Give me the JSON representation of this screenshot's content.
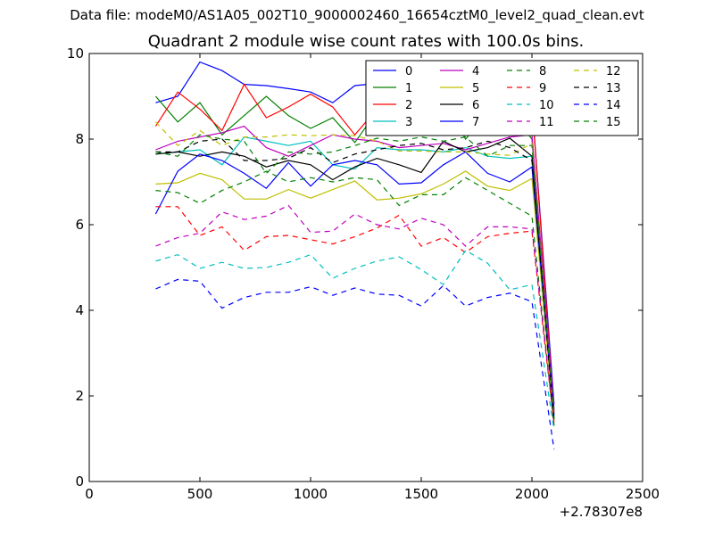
{
  "figure": {
    "suptitle": "Data file: modeM0/AS1A05_002T10_9000002460_16654cztM0_level2_quad_clean.evt"
  },
  "chart_data": {
    "type": "line",
    "title": "Quadrant 2 module wise count rates with 100.0s bins.",
    "xlabel": "",
    "ylabel": "",
    "x_offset_label": "+2.78307e8",
    "xlim": [
      0,
      2500
    ],
    "ylim": [
      0,
      10
    ],
    "xticks": [
      0,
      500,
      1000,
      1500,
      2000,
      2500
    ],
    "yticks": [
      0,
      2,
      4,
      6,
      8,
      10
    ],
    "grid": false,
    "legend_position": "upper-right",
    "x": [
      300,
      400,
      500,
      600,
      700,
      800,
      900,
      1000,
      1100,
      1200,
      1300,
      1400,
      1500,
      1600,
      1700,
      1800,
      1900,
      2000,
      2100
    ],
    "series": [
      {
        "name": "0",
        "color": "#0000ff",
        "dash": "solid",
        "values": [
          8.85,
          9.0,
          9.8,
          9.6,
          9.28,
          9.25,
          9.18,
          9.1,
          8.85,
          9.25,
          9.3,
          8.72,
          9.0,
          9.45,
          9.3,
          8.8,
          9.05,
          8.85,
          1.8
        ]
      },
      {
        "name": "1",
        "color": "#008000",
        "dash": "solid",
        "values": [
          9.0,
          8.4,
          8.85,
          8.1,
          8.55,
          9.0,
          8.55,
          8.25,
          8.5,
          7.92,
          8.65,
          8.7,
          8.75,
          9.0,
          8.0,
          8.6,
          8.65,
          8.0,
          1.7
        ]
      },
      {
        "name": "2",
        "color": "#ff0000",
        "dash": "solid",
        "values": [
          8.3,
          9.1,
          8.7,
          8.2,
          9.28,
          8.5,
          8.75,
          9.05,
          8.75,
          8.1,
          8.7,
          8.72,
          8.72,
          8.1,
          8.9,
          8.8,
          8.72,
          8.85,
          1.6
        ]
      },
      {
        "name": "3",
        "color": "#00bfbf",
        "dash": "solid",
        "values": [
          7.65,
          7.7,
          7.75,
          7.4,
          8.05,
          7.95,
          7.85,
          7.95,
          7.4,
          7.3,
          7.8,
          7.75,
          7.75,
          7.7,
          7.8,
          7.6,
          7.55,
          7.6,
          1.5
        ]
      },
      {
        "name": "4",
        "color": "#bf00bf",
        "dash": "solid",
        "values": [
          7.75,
          7.95,
          8.05,
          8.15,
          8.3,
          7.8,
          7.6,
          7.85,
          8.1,
          8.0,
          7.95,
          7.8,
          7.85,
          7.9,
          7.75,
          7.9,
          8.05,
          8.1,
          1.65
        ]
      },
      {
        "name": "5",
        "color": "#bfbf00",
        "dash": "solid",
        "values": [
          6.95,
          6.98,
          7.2,
          7.05,
          6.6,
          6.6,
          6.82,
          6.62,
          6.82,
          7.02,
          6.58,
          6.62,
          6.72,
          6.95,
          7.25,
          6.9,
          6.8,
          7.08,
          1.4
        ]
      },
      {
        "name": "6",
        "color": "#000000",
        "dash": "solid",
        "values": [
          7.65,
          7.7,
          7.6,
          7.7,
          7.6,
          7.35,
          7.5,
          7.4,
          7.05,
          7.35,
          7.55,
          7.4,
          7.22,
          7.95,
          7.7,
          7.8,
          8.02,
          7.6,
          1.45
        ]
      },
      {
        "name": "7",
        "color": "#0000ff",
        "dash": "solid",
        "values": [
          6.25,
          7.25,
          7.65,
          7.5,
          7.2,
          6.85,
          7.45,
          6.9,
          7.4,
          7.5,
          7.4,
          6.95,
          6.98,
          7.4,
          7.7,
          7.2,
          7.0,
          7.35,
          1.55
        ]
      },
      {
        "name": "8",
        "color": "#008000",
        "dash": "dashed",
        "values": [
          6.8,
          6.75,
          6.5,
          6.8,
          7.0,
          7.25,
          7.0,
          7.1,
          7.0,
          7.1,
          7.05,
          6.45,
          6.7,
          6.7,
          7.1,
          6.8,
          6.5,
          6.2,
          1.3
        ]
      },
      {
        "name": "9",
        "color": "#ff0000",
        "dash": "dashed",
        "values": [
          6.42,
          6.42,
          5.75,
          5.95,
          5.4,
          5.72,
          5.75,
          5.65,
          5.55,
          5.72,
          5.92,
          6.22,
          5.5,
          5.7,
          5.35,
          5.72,
          5.8,
          5.85,
          1.35
        ]
      },
      {
        "name": "10",
        "color": "#00bfbf",
        "dash": "dashed",
        "values": [
          5.15,
          5.3,
          4.98,
          5.12,
          4.98,
          5.0,
          5.12,
          5.3,
          4.75,
          4.98,
          5.15,
          5.25,
          4.95,
          4.6,
          5.4,
          5.1,
          4.48,
          4.6,
          1.2
        ]
      },
      {
        "name": "11",
        "color": "#bf00bf",
        "dash": "dashed",
        "values": [
          5.5,
          5.7,
          5.8,
          6.3,
          6.12,
          6.2,
          6.45,
          5.82,
          5.85,
          6.25,
          6.0,
          5.9,
          6.15,
          6.0,
          5.5,
          5.95,
          5.95,
          5.9,
          1.4
        ]
      },
      {
        "name": "12",
        "color": "#bfbf00",
        "dash": "dashed",
        "values": [
          8.4,
          7.85,
          8.2,
          7.85,
          8.05,
          8.05,
          8.1,
          8.08,
          8.1,
          8.08,
          7.95,
          7.72,
          7.72,
          7.7,
          7.7,
          7.65,
          7.62,
          7.9,
          1.5
        ]
      },
      {
        "name": "13",
        "color": "#000000",
        "dash": "dashed",
        "values": [
          7.7,
          7.7,
          7.95,
          8.0,
          7.5,
          7.5,
          7.55,
          7.8,
          7.45,
          7.65,
          7.75,
          7.85,
          7.9,
          7.75,
          7.8,
          7.95,
          7.8,
          7.5,
          1.35
        ]
      },
      {
        "name": "14",
        "color": "#0000ff",
        "dash": "dashed",
        "values": [
          4.5,
          4.72,
          4.68,
          4.05,
          4.3,
          4.42,
          4.42,
          4.55,
          4.35,
          4.52,
          4.38,
          4.35,
          4.1,
          4.58,
          4.1,
          4.3,
          4.4,
          4.2,
          0.75
        ]
      },
      {
        "name": "15",
        "color": "#008000",
        "dash": "dashed",
        "values": [
          7.7,
          7.6,
          8.1,
          8.0,
          7.95,
          7.2,
          7.7,
          7.65,
          7.7,
          7.85,
          8.02,
          7.95,
          8.05,
          7.95,
          8.05,
          7.6,
          7.85,
          7.85,
          1.45
        ]
      }
    ]
  }
}
